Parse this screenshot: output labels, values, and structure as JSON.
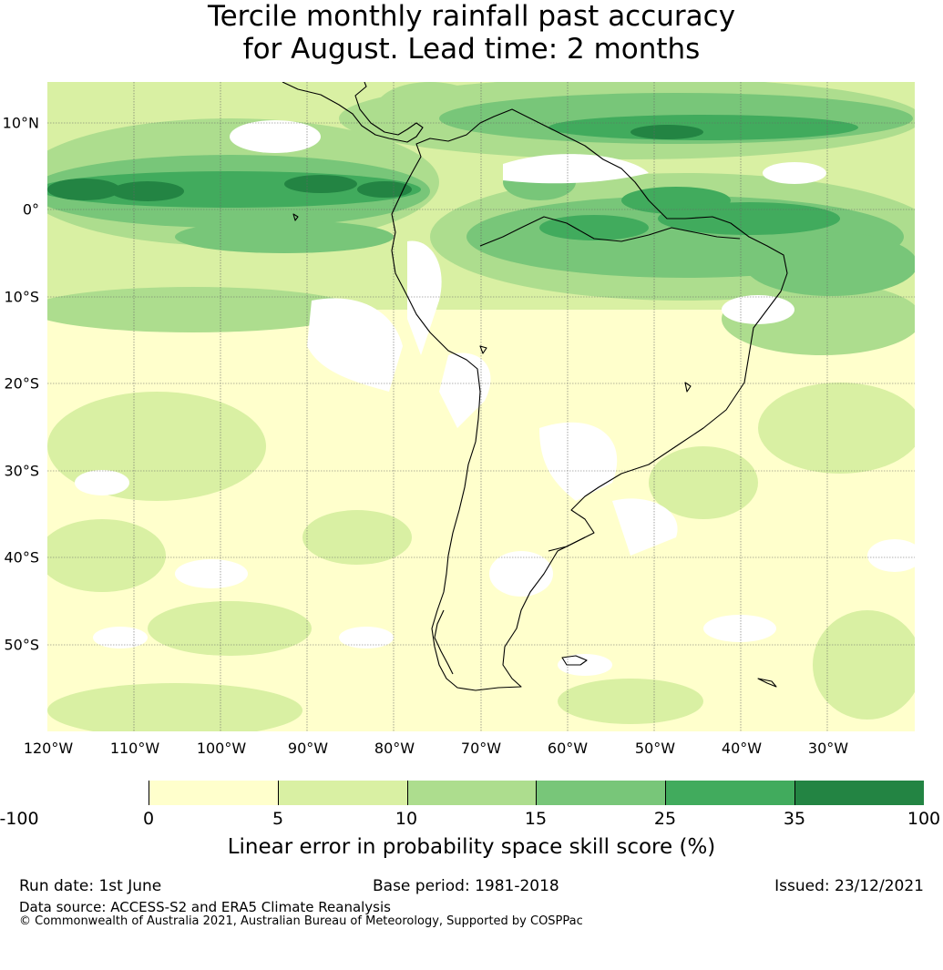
{
  "title": {
    "line1": "Tercile monthly rainfall past accuracy",
    "line2": "for August. Lead time: 2 months"
  },
  "map": {
    "region": "South America",
    "lat_labels": [
      "10°N",
      "0°",
      "10°S",
      "20°S",
      "30°S",
      "40°S",
      "50°S"
    ],
    "lon_labels": [
      "120°W",
      "110°W",
      "100°W",
      "90°W",
      "80°W",
      "70°W",
      "60°W",
      "50°W",
      "40°W",
      "30°W"
    ],
    "colors": {
      "white": "#ffffff",
      "c0": "#ffffcc",
      "c5": "#d9f0a3",
      "c10": "#addd8e",
      "c15": "#78c679",
      "c25": "#41ab5d",
      "c35": "#238443",
      "coast": "#000000",
      "grid": "#555555"
    }
  },
  "colorbar": {
    "ticks": [
      "-100",
      "0",
      "5",
      "10",
      "15",
      "25",
      "35",
      "100"
    ],
    "colors": [
      "#ffffff",
      "#ffffcc",
      "#d9f0a3",
      "#addd8e",
      "#78c679",
      "#41ab5d",
      "#238443"
    ],
    "label": "Linear error in probability space skill score (%)"
  },
  "footer": {
    "run_date": "Run date: 1st June",
    "base_period": "Base period: 1981-2018",
    "issued": "Issued: 23/12/2021",
    "data_source": "Data source: ACCESS-S2 and ERA5 Climate Reanalysis",
    "copyright": "© Commonwealth of Australia 2021, Australian Bureau of Meteorology, Supported by COSPPac"
  }
}
